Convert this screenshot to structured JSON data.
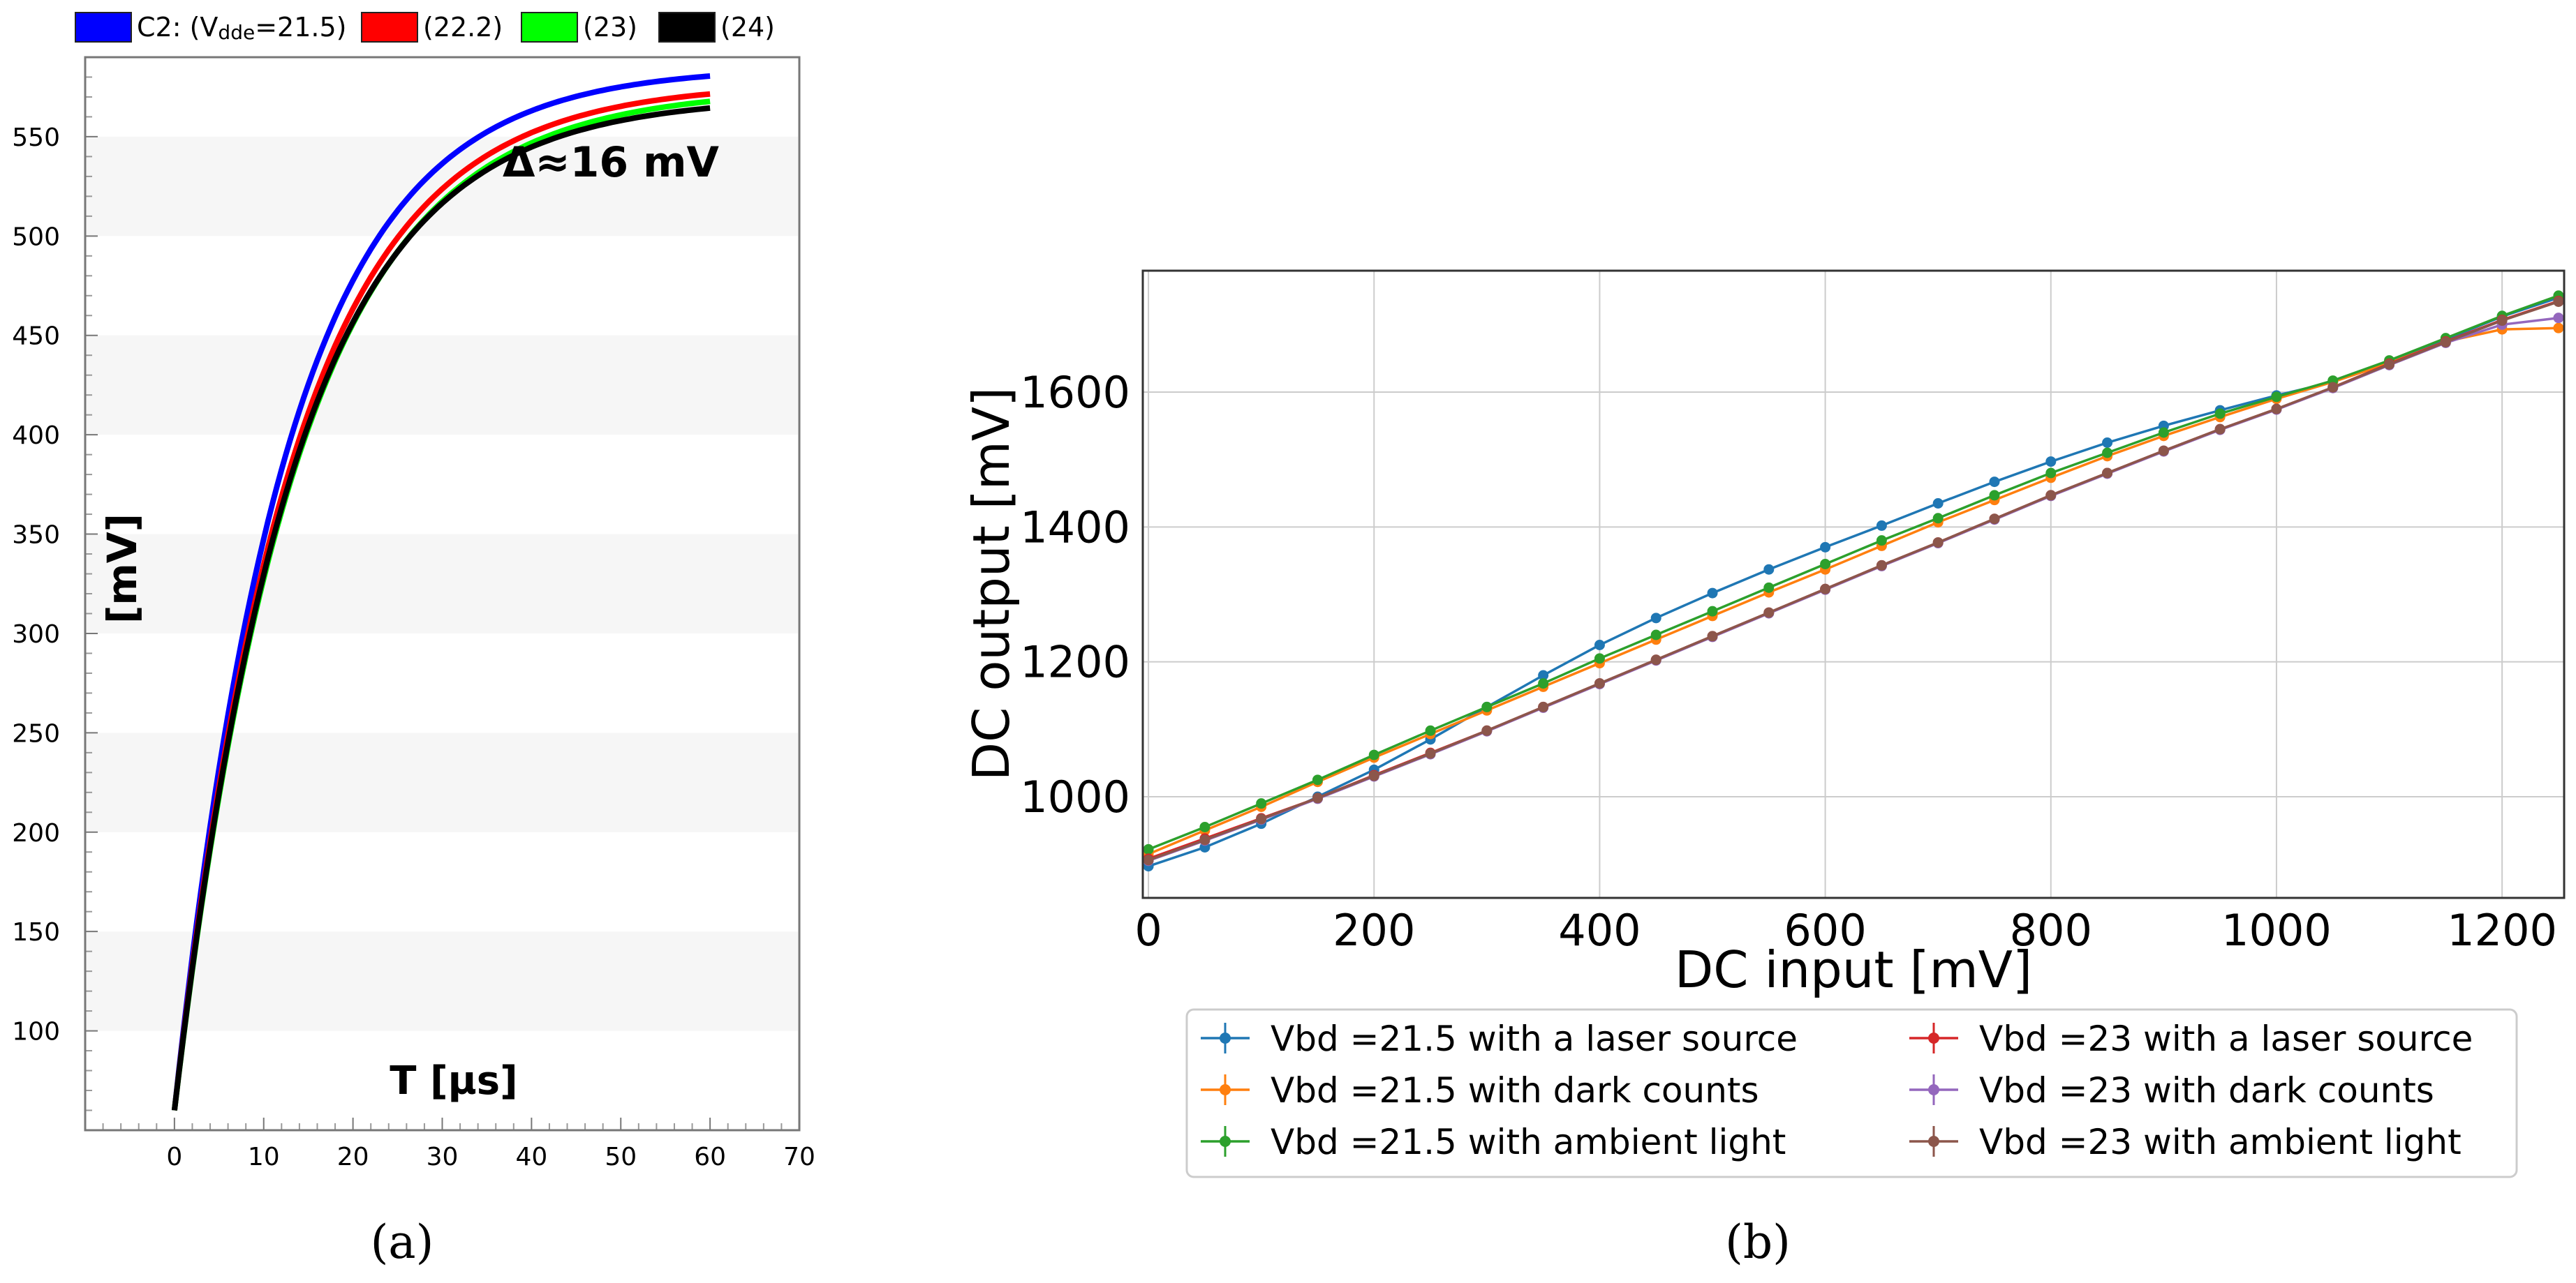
{
  "panel_captions": {
    "a": "(a)",
    "b": "(b)"
  },
  "chart_data": [
    {
      "id": "a",
      "type": "line",
      "title": "",
      "xlabel": "T [µs]",
      "ylabel": "[mV]",
      "annotation": "Δ≈16 mV",
      "xlim": [
        -10,
        70
      ],
      "ylim": [
        50,
        590
      ],
      "xticks": [
        0,
        10,
        20,
        30,
        40,
        50,
        60,
        70
      ],
      "yticks": [
        100,
        150,
        200,
        250,
        300,
        350,
        400,
        450,
        500,
        550
      ],
      "legend": {
        "position": "top",
        "prefix": "C2: (V",
        "subscript": "dde",
        "suffix": "=21.5)",
        "entries": [
          "(22.2)",
          "(23)",
          "(24)"
        ]
      },
      "series": [
        {
          "name": "C2: (Vdde=21.5)",
          "color": "#0000ff",
          "v0": 60,
          "vinf": 585,
          "tau": 12.6
        },
        {
          "name": "(22.2)",
          "color": "#ff0000",
          "v0": 60,
          "vinf": 577,
          "tau": 13.2
        },
        {
          "name": "(23)",
          "color": "#00ff00",
          "v0": 60,
          "vinf": 574,
          "tau": 13.6
        },
        {
          "name": "(24)",
          "color": "#000000",
          "v0": 60,
          "vinf": 570,
          "tau": 13.3
        }
      ],
      "x_range": [
        0,
        60
      ]
    },
    {
      "id": "b",
      "type": "line",
      "title": "",
      "xlabel": "DC input [mV]",
      "ylabel": "DC output [mV]",
      "xlim": [
        -5,
        1255
      ],
      "ylim": [
        850,
        1780
      ],
      "xticks": [
        0,
        200,
        400,
        600,
        800,
        1000,
        1200
      ],
      "yticks": [
        1000,
        1200,
        1400,
        1600
      ],
      "grid": true,
      "legend": {
        "position": "bottom"
      },
      "x": [
        0,
        50,
        100,
        150,
        200,
        250,
        300,
        350,
        400,
        450,
        500,
        550,
        600,
        650,
        700,
        750,
        800,
        850,
        900,
        950,
        1000,
        1050,
        1100,
        1150,
        1200,
        1250
      ],
      "series": [
        {
          "name": "Vbd =21.5 with a laser source",
          "color": "#1f77b4",
          "values": [
            897,
            925,
            960,
            1000,
            1040,
            1085,
            1133,
            1180,
            1225,
            1265,
            1302,
            1337,
            1370,
            1402,
            1435,
            1467,
            1497,
            1525,
            1550,
            1573,
            1595,
            1615,
            1645,
            1678,
            1712,
            1740
          ]
        },
        {
          "name": "Vbd =21.5 with dark counts",
          "color": "#ff7f0e",
          "values": [
            915,
            950,
            985,
            1022,
            1058,
            1093,
            1128,
            1163,
            1198,
            1233,
            1268,
            1303,
            1337,
            1372,
            1407,
            1440,
            1473,
            1505,
            1535,
            1563,
            1590,
            1615,
            1643,
            1675,
            1693,
            1695
          ]
        },
        {
          "name": "Vbd =21.5 with ambient light",
          "color": "#2ca02c",
          "values": [
            922,
            955,
            990,
            1025,
            1062,
            1098,
            1133,
            1168,
            1205,
            1240,
            1275,
            1310,
            1345,
            1380,
            1413,
            1447,
            1480,
            1510,
            1540,
            1568,
            1593,
            1617,
            1647,
            1680,
            1713,
            1743
          ]
        },
        {
          "name": "Vbd =23 with a laser source",
          "color": "#d62728",
          "values": [
            908,
            938,
            968,
            998,
            1032,
            1065,
            1098,
            1133,
            1168,
            1203,
            1238,
            1273,
            1308,
            1343,
            1377,
            1412,
            1447,
            1480,
            1513,
            1545,
            1575,
            1607,
            1642,
            1675,
            1707,
            1735
          ]
        },
        {
          "name": "Vbd =23 with dark counts",
          "color": "#9467bd",
          "values": [
            905,
            935,
            966,
            997,
            1030,
            1063,
            1097,
            1132,
            1167,
            1202,
            1237,
            1272,
            1307,
            1342,
            1376,
            1411,
            1446,
            1479,
            1512,
            1544,
            1574,
            1606,
            1640,
            1673,
            1700,
            1710
          ]
        },
        {
          "name": "Vbd =23 with ambient light",
          "color": "#8c564b",
          "values": [
            906,
            936,
            967,
            998,
            1031,
            1064,
            1098,
            1133,
            1168,
            1203,
            1238,
            1273,
            1308,
            1343,
            1377,
            1412,
            1447,
            1480,
            1513,
            1545,
            1575,
            1607,
            1641,
            1674,
            1706,
            1734
          ]
        }
      ]
    }
  ]
}
